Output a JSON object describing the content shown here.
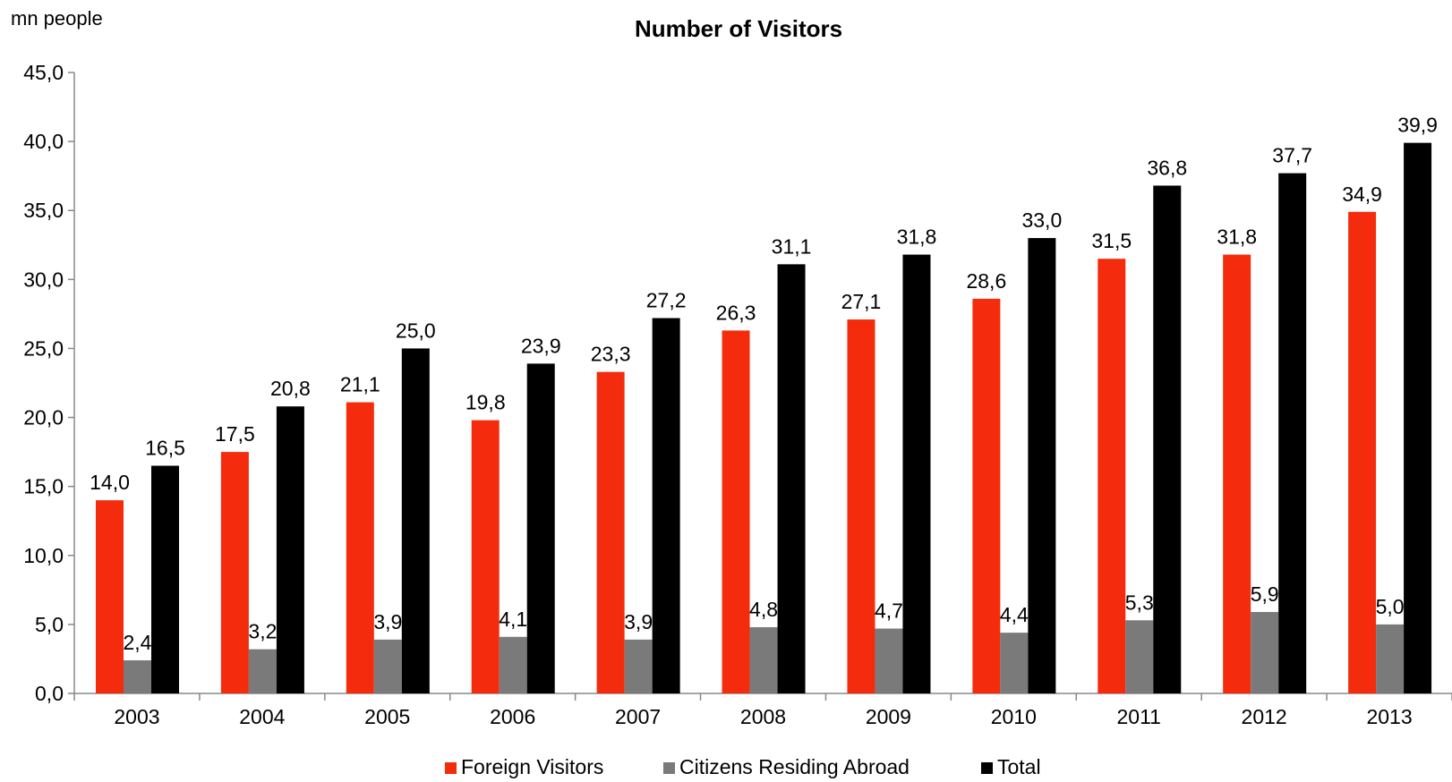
{
  "chart_data": {
    "type": "bar",
    "title": "Number of Visitors",
    "unit_label": "mn people",
    "xlabel": "",
    "ylabel": "",
    "ylim": [
      0,
      45
    ],
    "y_ticks": [
      "0,0",
      "5,0",
      "10,0",
      "15,0",
      "20,0",
      "25,0",
      "30,0",
      "35,0",
      "40,0",
      "45,0"
    ],
    "categories": [
      "2003",
      "2004",
      "2005",
      "2006",
      "2007",
      "2008",
      "2009",
      "2010",
      "2011",
      "2012",
      "2013"
    ],
    "series": [
      {
        "name": "Foreign Visitors",
        "color": "#f42c0d",
        "values": [
          14.0,
          17.5,
          21.1,
          19.8,
          23.3,
          26.3,
          27.1,
          28.6,
          31.5,
          31.8,
          34.9
        ],
        "labels": [
          "14,0",
          "17,5",
          "21,1",
          "19,8",
          "23,3",
          "26,3",
          "27,1",
          "28,6",
          "31,5",
          "31,8",
          "34,9"
        ]
      },
      {
        "name": "Citizens Residing Abroad",
        "color": "#7a7a7a",
        "values": [
          2.4,
          3.2,
          3.9,
          4.1,
          3.9,
          4.8,
          4.7,
          4.4,
          5.3,
          5.9,
          5.0
        ],
        "labels": [
          "2,4",
          "3,2",
          "3,9",
          "4,1",
          "3,9",
          "4,8",
          "4,7",
          "4,4",
          "5,3",
          "5,9",
          "5,0"
        ]
      },
      {
        "name": "Total",
        "color": "#000000",
        "values": [
          16.5,
          20.8,
          25.0,
          23.9,
          27.2,
          31.1,
          31.8,
          33.0,
          36.8,
          37.7,
          39.9
        ],
        "labels": [
          "16,5",
          "20,8",
          "25,0",
          "23,9",
          "27,2",
          "31,1",
          "31,8",
          "33,0",
          "36,8",
          "37,7",
          "39,9"
        ]
      }
    ],
    "grid": false,
    "legend_position": "bottom"
  }
}
